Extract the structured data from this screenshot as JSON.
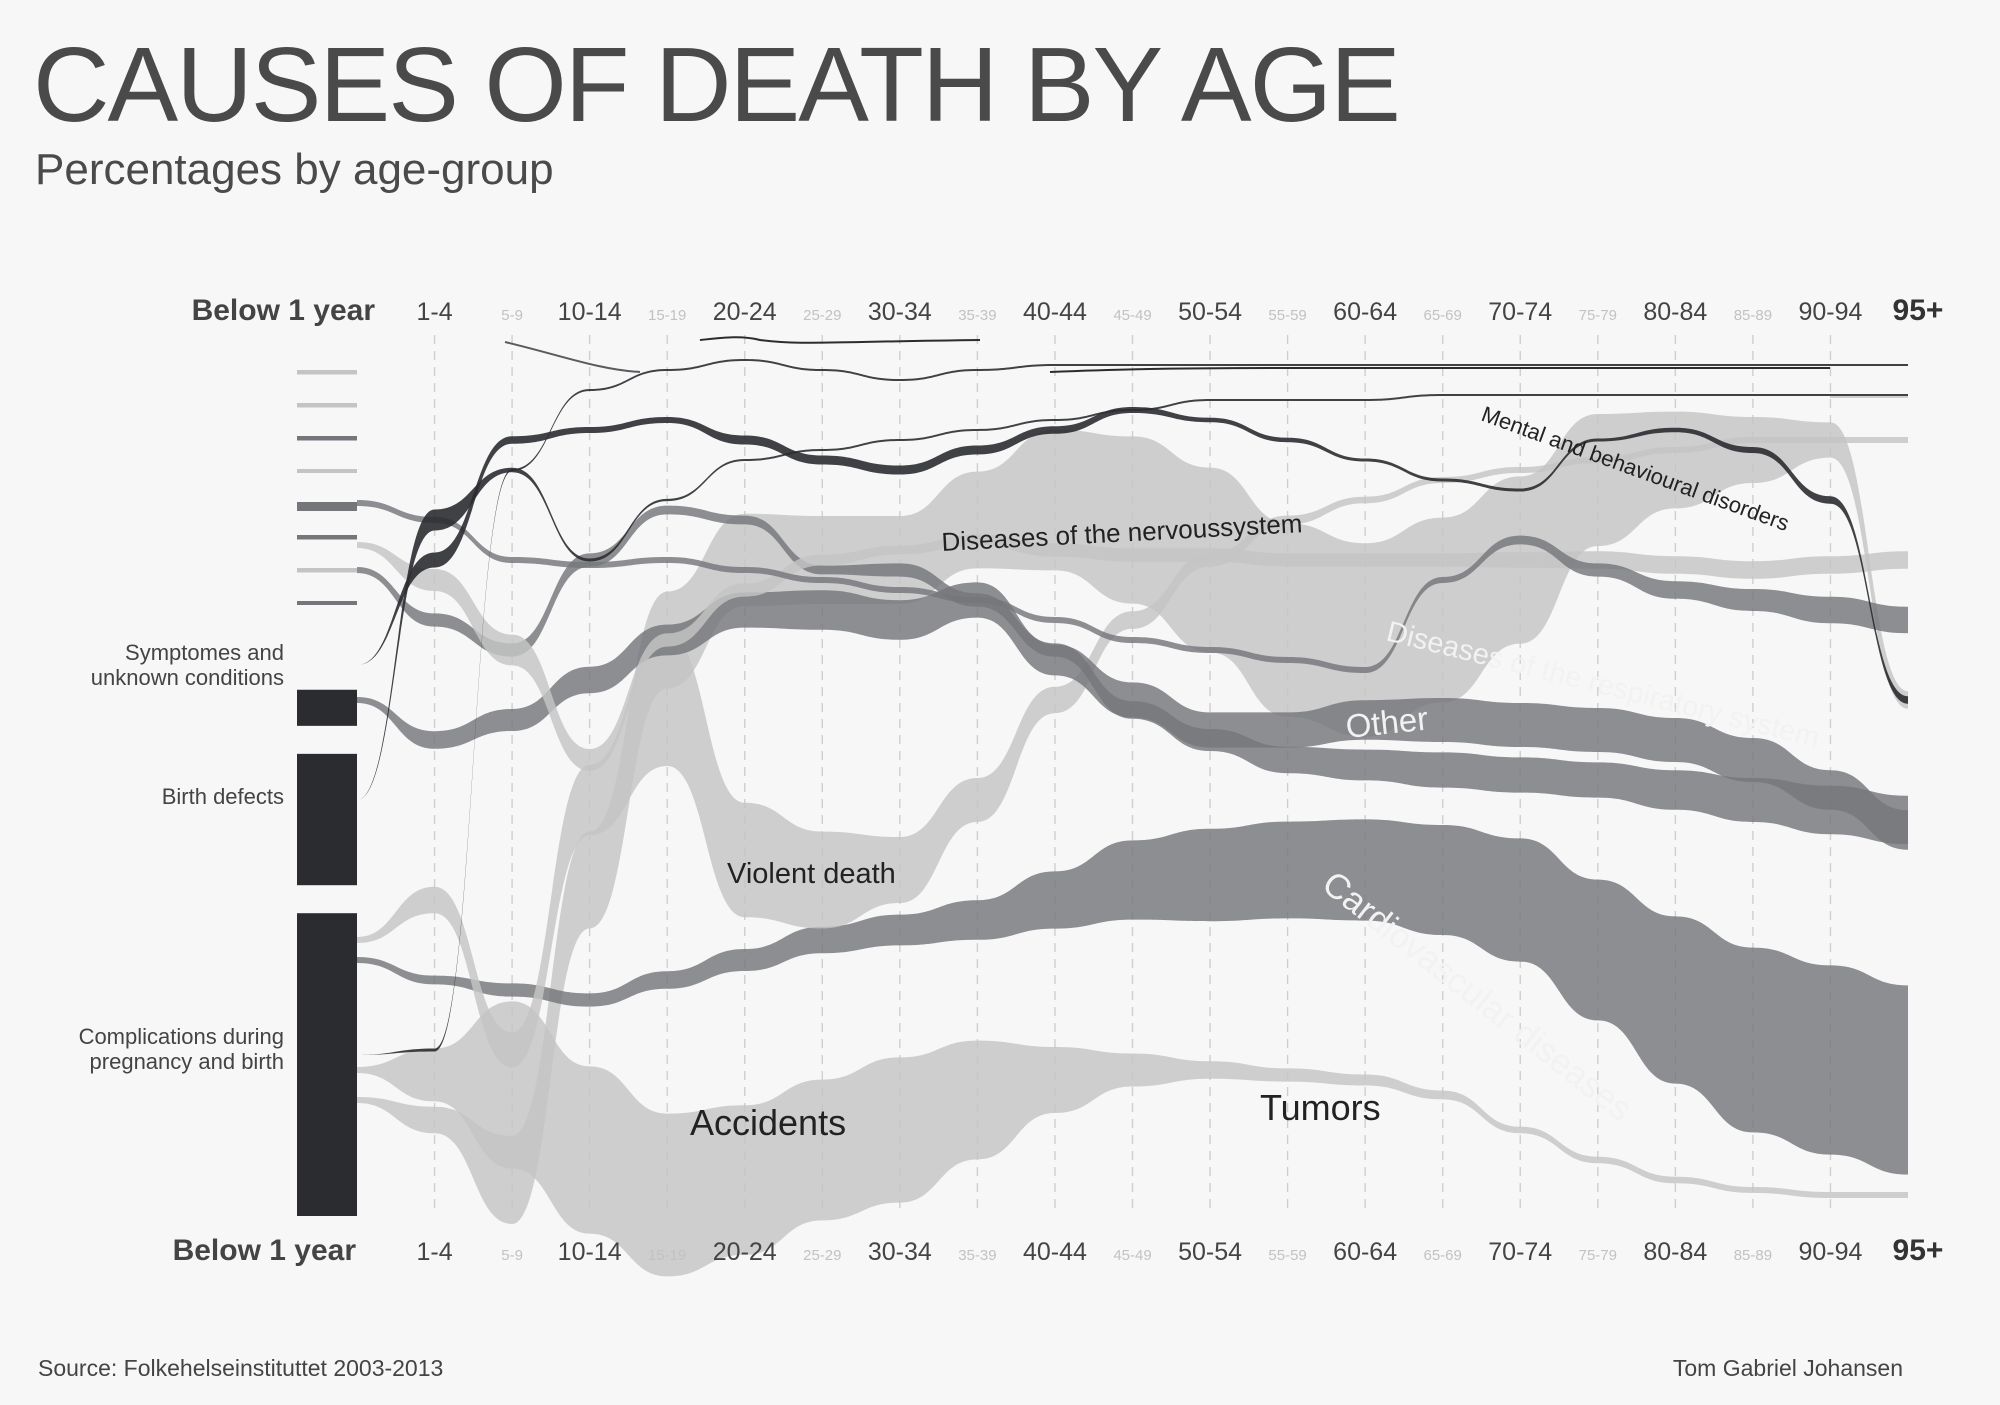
{
  "header": {
    "title": "CAUSES OF DEATH BY AGE",
    "subtitle": "Percentages by age-group"
  },
  "footer": {
    "source": "Source: Folkehelseinstituttet 2003-2013",
    "author": "Tom Gabriel Johansen"
  },
  "colors": {
    "background": "#f7f7f7",
    "black": "#2b2c30",
    "dark": "#5a5b5f",
    "mid": "#75767a",
    "light": "#c4c4c4",
    "grid": "#cfcfcf"
  },
  "chart_data": {
    "type": "area",
    "age_groups": [
      "Below 1 year",
      "1-4",
      "5-9",
      "10-14",
      "15-19",
      "20-24",
      "25-29",
      "30-34",
      "35-39",
      "40-44",
      "45-49",
      "50-54",
      "55-59",
      "60-64",
      "65-69",
      "70-74",
      "75-79",
      "80-84",
      "85-89",
      "90-94",
      "95+"
    ],
    "major_ticks": [
      "Below 1 year",
      "1-4",
      "10-14",
      "20-24",
      "30-34",
      "40-44",
      "50-54",
      "60-64",
      "70-74",
      "80-84",
      "90-94",
      "95+"
    ],
    "y_unit": "percent",
    "series": [
      {
        "name": "Accidents",
        "color": "light",
        "values": [
          0.5,
          12,
          38,
          38,
          37,
          34,
          32,
          33,
          27,
          15,
          7.5,
          4,
          3,
          2.5,
          2,
          1.5,
          1.5,
          1.5,
          1,
          1,
          1
        ]
      },
      {
        "name": "Tumors",
        "color": "light",
        "values": [
          0.5,
          6,
          20,
          22,
          22,
          21,
          20,
          20,
          22,
          32,
          38,
          42,
          44,
          44,
          42,
          38,
          30,
          22,
          15,
          8,
          4
        ]
      },
      {
        "name": "Cardiovascular diseases",
        "color": "mid",
        "values": [
          0.5,
          2,
          3,
          3,
          4,
          5,
          6,
          7,
          9,
          13,
          18,
          21,
          22,
          23,
          25,
          28,
          32,
          38,
          42,
          43,
          43
        ]
      },
      {
        "name": "Violent death",
        "color": "light",
        "values": [
          0.3,
          6,
          8,
          16,
          30,
          26,
          22,
          15,
          10,
          6,
          4,
          3,
          2,
          1.5,
          1,
          0.8,
          0.5,
          0.4,
          0.3,
          0.3,
          0.3
        ]
      },
      {
        "name": "Other",
        "color": "mid",
        "values": [
          1,
          4,
          5,
          6,
          7,
          8,
          9,
          9,
          8,
          7,
          8,
          8,
          8,
          9,
          10,
          10,
          10,
          10,
          10,
          9,
          9
        ]
      },
      {
        "name": "Diseases of the respiratory system",
        "color": "mid",
        "values": [
          0.5,
          3,
          3,
          3,
          2,
          2,
          2,
          3,
          3,
          3,
          4,
          5,
          6,
          7,
          8,
          8,
          8,
          9,
          10,
          11,
          11
        ]
      },
      {
        "name": "Diseases of the nervoussystem",
        "color": "light",
        "values": [
          0.5,
          5,
          7,
          5,
          3,
          3,
          2.5,
          2,
          2.5,
          3,
          3,
          3,
          3,
          3,
          3,
          3.5,
          4,
          4,
          4,
          4,
          4
        ]
      },
      {
        "name": "Mental and behavioural disorders",
        "color": "mid",
        "values": [
          0.3,
          0.8,
          0.8,
          0.8,
          1,
          1,
          1,
          1,
          1,
          1,
          1,
          1,
          1,
          1,
          1,
          2,
          3,
          4,
          5,
          6,
          6
        ]
      },
      {
        "name": "Symptomes and unknown conditions",
        "color": "black",
        "values": [
          6,
          10,
          5,
          4,
          4,
          6,
          6,
          6,
          6,
          5,
          4,
          3,
          3,
          2,
          2,
          2,
          2,
          3,
          4,
          5,
          5
        ]
      },
      {
        "name": "Birth defects",
        "color": "black",
        "values": [
          21,
          14,
          3,
          2,
          1.5,
          1,
          1,
          1,
          0.8,
          0.6,
          0.5,
          0.5,
          0.5,
          0.4,
          0.3,
          0.3,
          0.3,
          0.2,
          0.1,
          0.1,
          0.1
        ]
      },
      {
        "name": "Complications during pregnancy and birth",
        "color": "black",
        "values": [
          48,
          2,
          0.5,
          0.3,
          0.2,
          0.2,
          0.2,
          0.2,
          0.2,
          0.2,
          0.2,
          0.1,
          0.1,
          0.1,
          0.1,
          0.1,
          0.1,
          0.1,
          0.1,
          0.1,
          0.1
        ]
      }
    ],
    "series_labels": {
      "left": [
        "Symptomes and unknown conditions",
        "Birth defects",
        "Complications during pregnancy and birth"
      ],
      "inline": [
        "Accidents",
        "Tumors",
        "Cardiovascular diseases",
        "Violent death",
        "Other",
        "Diseases of the respiratory system",
        "Diseases of the nervoussystem",
        "Mental and behavioural disorders"
      ]
    },
    "grid": true,
    "legend": "none"
  }
}
